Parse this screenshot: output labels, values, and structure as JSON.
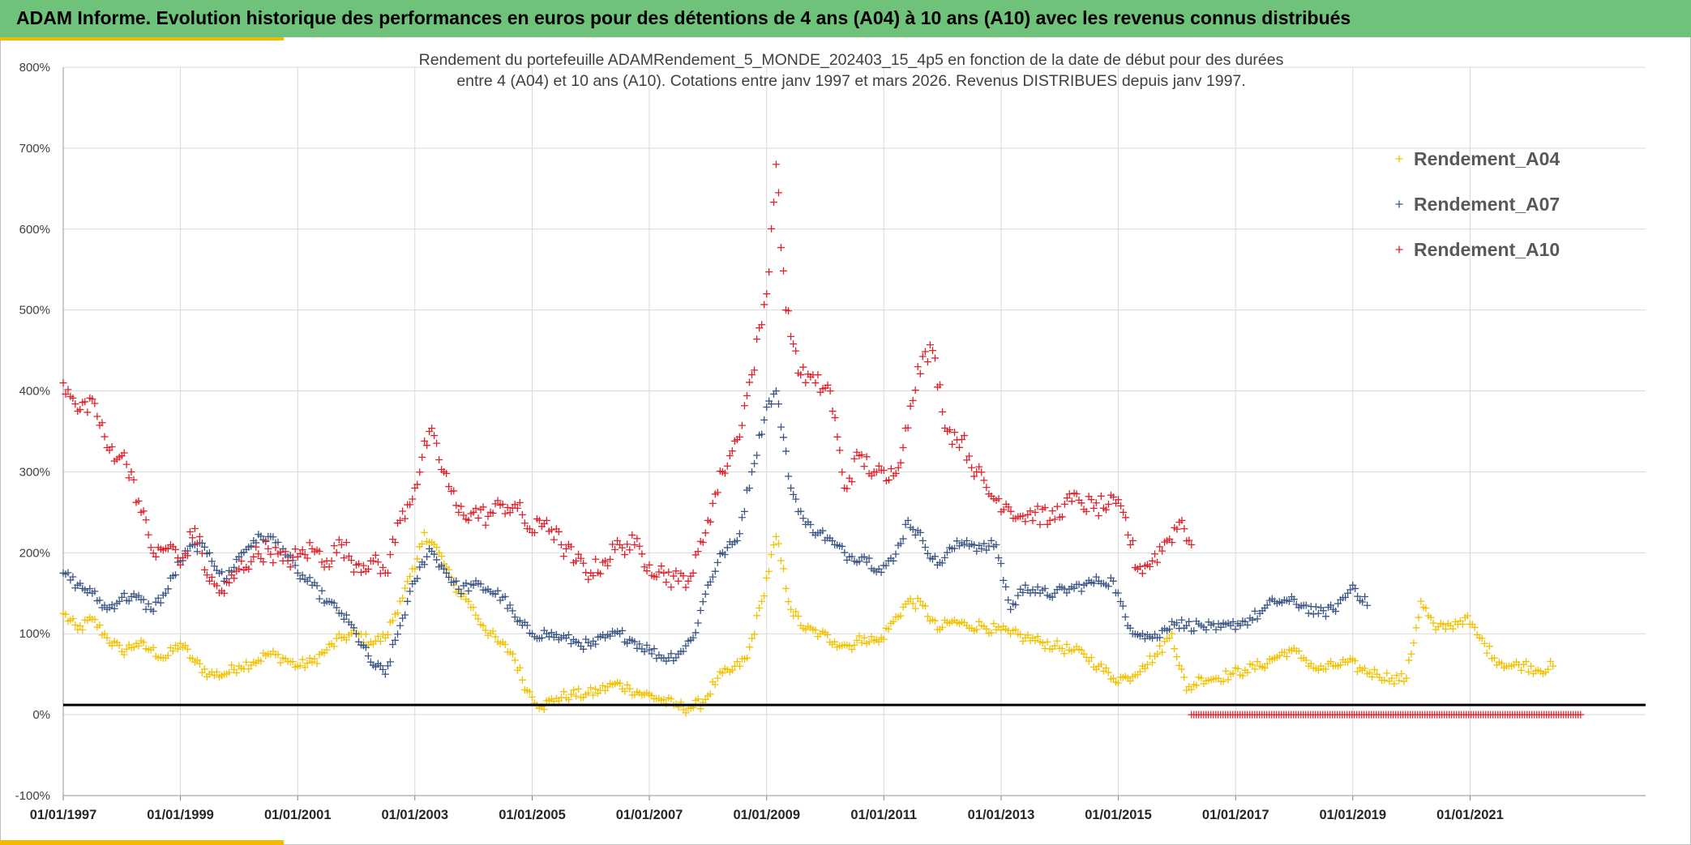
{
  "header": {
    "title": "ADAM Informe. Evolution historique des performances en euros pour des détentions de 4 ans (A04) à 10 ans (A10) avec les revenus connus distribués"
  },
  "chart_data": {
    "type": "scatter",
    "title_line1": "Rendement du portefeuille ADAMRendement_5_MONDE_202403_15_4p5  en fonction de la date de début pour des durées",
    "title_line2": "entre 4 (A04) et 10 ans (A10). Cotations entre janv 1997 et mars 2026. Revenus DISTRIBUES depuis janv 1997.",
    "xlabel": "",
    "ylabel": "",
    "ylim": [
      -100,
      800
    ],
    "x_range": [
      "1997-01-01",
      "2023-01-01"
    ],
    "y_ticks": [
      "-100%",
      "0%",
      "100%",
      "200%",
      "300%",
      "400%",
      "500%",
      "600%",
      "700%",
      "800%"
    ],
    "x_ticks": [
      "01/01/1997",
      "01/01/1999",
      "01/01/2001",
      "01/01/2003",
      "01/01/2005",
      "01/01/2007",
      "01/01/2009",
      "01/01/2011",
      "01/01/2013",
      "01/01/2015",
      "01/01/2017",
      "01/01/2019",
      "01/01/2021"
    ],
    "grid": true,
    "legend_position": "top-right",
    "reference_line_y": 12,
    "series": [
      {
        "name": "Rendement_A04",
        "color": "#f2c100",
        "points": [
          [
            "1997-01-01",
            125
          ],
          [
            "1997-04-01",
            105
          ],
          [
            "1997-07-01",
            118
          ],
          [
            "1997-10-01",
            95
          ],
          [
            "1998-01-01",
            78
          ],
          [
            "1998-04-01",
            88
          ],
          [
            "1998-07-01",
            80
          ],
          [
            "1998-10-01",
            70
          ],
          [
            "1999-01-01",
            88
          ],
          [
            "1999-04-01",
            65
          ],
          [
            "1999-07-01",
            50
          ],
          [
            "1999-10-01",
            50
          ],
          [
            "2000-01-01",
            60
          ],
          [
            "2000-04-01",
            65
          ],
          [
            "2000-07-01",
            75
          ],
          [
            "2000-10-01",
            70
          ],
          [
            "2001-01-01",
            60
          ],
          [
            "2001-04-01",
            65
          ],
          [
            "2001-07-01",
            80
          ],
          [
            "2001-10-01",
            95
          ],
          [
            "2002-01-01",
            100
          ],
          [
            "2002-04-01",
            90
          ],
          [
            "2002-07-01",
            95
          ],
          [
            "2002-10-01",
            140
          ],
          [
            "2003-01-01",
            180
          ],
          [
            "2003-03-01",
            225
          ],
          [
            "2003-06-01",
            200
          ],
          [
            "2003-09-01",
            160
          ],
          [
            "2003-12-01",
            140
          ],
          [
            "2004-03-01",
            110
          ],
          [
            "2004-06-01",
            90
          ],
          [
            "2004-09-01",
            75
          ],
          [
            "2004-12-01",
            30
          ],
          [
            "2005-03-01",
            10
          ],
          [
            "2005-06-01",
            20
          ],
          [
            "2005-09-01",
            25
          ],
          [
            "2005-12-01",
            25
          ],
          [
            "2006-03-01",
            30
          ],
          [
            "2006-06-01",
            38
          ],
          [
            "2006-09-01",
            32
          ],
          [
            "2006-12-01",
            25
          ],
          [
            "2007-03-01",
            20
          ],
          [
            "2007-06-01",
            12
          ],
          [
            "2007-09-01",
            8
          ],
          [
            "2007-12-01",
            15
          ],
          [
            "2008-03-01",
            45
          ],
          [
            "2008-06-01",
            55
          ],
          [
            "2008-09-01",
            70
          ],
          [
            "2008-12-01",
            140
          ],
          [
            "2009-03-01",
            220
          ],
          [
            "2009-06-01",
            130
          ],
          [
            "2009-09-01",
            105
          ],
          [
            "2009-12-01",
            100
          ],
          [
            "2010-03-01",
            90
          ],
          [
            "2010-06-01",
            85
          ],
          [
            "2010-09-01",
            95
          ],
          [
            "2010-12-01",
            90
          ],
          [
            "2011-03-01",
            115
          ],
          [
            "2011-06-01",
            140
          ],
          [
            "2011-09-01",
            135
          ],
          [
            "2011-12-01",
            105
          ],
          [
            "2012-03-01",
            115
          ],
          [
            "2012-06-01",
            110
          ],
          [
            "2012-09-01",
            110
          ],
          [
            "2012-12-01",
            105
          ],
          [
            "2013-03-01",
            100
          ],
          [
            "2013-06-01",
            95
          ],
          [
            "2013-09-01",
            90
          ],
          [
            "2013-12-01",
            85
          ],
          [
            "2014-03-01",
            80
          ],
          [
            "2014-06-01",
            75
          ],
          [
            "2014-09-01",
            60
          ],
          [
            "2014-12-01",
            45
          ],
          [
            "2015-03-01",
            45
          ],
          [
            "2015-06-01",
            60
          ],
          [
            "2015-09-01",
            75
          ],
          [
            "2015-12-01",
            100
          ],
          [
            "2016-03-01",
            30
          ],
          [
            "2016-06-01",
            45
          ],
          [
            "2016-09-01",
            45
          ],
          [
            "2016-12-01",
            50
          ],
          [
            "2017-03-01",
            55
          ],
          [
            "2017-06-01",
            60
          ],
          [
            "2017-09-01",
            70
          ],
          [
            "2017-12-01",
            80
          ],
          [
            "2018-03-01",
            70
          ],
          [
            "2018-06-01",
            55
          ],
          [
            "2018-09-01",
            60
          ],
          [
            "2018-12-01",
            65
          ],
          [
            "2019-03-01",
            55
          ],
          [
            "2019-06-01",
            50
          ],
          [
            "2019-09-01",
            45
          ],
          [
            "2019-12-01",
            45
          ],
          [
            "2020-03-01",
            140
          ],
          [
            "2020-06-01",
            105
          ],
          [
            "2020-09-01",
            110
          ],
          [
            "2020-12-01",
            120
          ],
          [
            "2021-03-01",
            95
          ],
          [
            "2021-06-01",
            70
          ],
          [
            "2021-09-01",
            60
          ],
          [
            "2021-12-01",
            62
          ],
          [
            "2022-03-01",
            55
          ],
          [
            "2022-06-01",
            60
          ]
        ]
      },
      {
        "name": "Rendement_A07",
        "color": "#3b5584",
        "points": [
          [
            "1997-01-01",
            175
          ],
          [
            "1997-04-01",
            160
          ],
          [
            "1997-07-01",
            150
          ],
          [
            "1997-10-01",
            130
          ],
          [
            "1998-01-01",
            145
          ],
          [
            "1998-04-01",
            145
          ],
          [
            "1998-07-01",
            130
          ],
          [
            "1998-10-01",
            150
          ],
          [
            "1999-01-01",
            190
          ],
          [
            "1999-04-01",
            210
          ],
          [
            "1999-07-01",
            200
          ],
          [
            "1999-10-01",
            165
          ],
          [
            "2000-01-01",
            195
          ],
          [
            "2000-04-01",
            215
          ],
          [
            "2000-07-01",
            220
          ],
          [
            "2000-10-01",
            205
          ],
          [
            "2001-01-01",
            175
          ],
          [
            "2001-04-01",
            160
          ],
          [
            "2001-07-01",
            140
          ],
          [
            "2001-10-01",
            125
          ],
          [
            "2002-01-01",
            100
          ],
          [
            "2002-04-01",
            65
          ],
          [
            "2002-07-01",
            50
          ],
          [
            "2002-10-01",
            110
          ],
          [
            "2003-01-01",
            165
          ],
          [
            "2003-04-01",
            205
          ],
          [
            "2003-07-01",
            180
          ],
          [
            "2003-10-01",
            155
          ],
          [
            "2004-01-01",
            160
          ],
          [
            "2004-04-01",
            155
          ],
          [
            "2004-07-01",
            145
          ],
          [
            "2004-10-01",
            115
          ],
          [
            "2005-01-01",
            100
          ],
          [
            "2005-04-01",
            100
          ],
          [
            "2005-07-01",
            95
          ],
          [
            "2005-10-01",
            90
          ],
          [
            "2006-01-01",
            85
          ],
          [
            "2006-04-01",
            95
          ],
          [
            "2006-07-01",
            100
          ],
          [
            "2006-10-01",
            90
          ],
          [
            "2007-01-01",
            80
          ],
          [
            "2007-04-01",
            70
          ],
          [
            "2007-07-01",
            75
          ],
          [
            "2007-10-01",
            95
          ],
          [
            "2008-01-01",
            160
          ],
          [
            "2008-04-01",
            200
          ],
          [
            "2008-07-01",
            215
          ],
          [
            "2008-10-01",
            300
          ],
          [
            "2009-01-01",
            380
          ],
          [
            "2009-03-01",
            400
          ],
          [
            "2009-06-01",
            280
          ],
          [
            "2009-09-01",
            235
          ],
          [
            "2009-12-01",
            225
          ],
          [
            "2010-03-01",
            210
          ],
          [
            "2010-06-01",
            195
          ],
          [
            "2010-09-01",
            195
          ],
          [
            "2010-12-01",
            180
          ],
          [
            "2011-03-01",
            190
          ],
          [
            "2011-06-01",
            240
          ],
          [
            "2011-09-01",
            215
          ],
          [
            "2011-12-01",
            185
          ],
          [
            "2012-03-01",
            205
          ],
          [
            "2012-06-01",
            215
          ],
          [
            "2012-09-01",
            205
          ],
          [
            "2012-12-01",
            210
          ],
          [
            "2013-03-01",
            130
          ],
          [
            "2013-06-01",
            160
          ],
          [
            "2013-09-01",
            150
          ],
          [
            "2013-12-01",
            150
          ],
          [
            "2014-03-01",
            155
          ],
          [
            "2014-06-01",
            160
          ],
          [
            "2014-09-01",
            165
          ],
          [
            "2014-12-01",
            165
          ],
          [
            "2015-03-01",
            110
          ],
          [
            "2015-06-01",
            100
          ],
          [
            "2015-09-01",
            95
          ],
          [
            "2015-12-01",
            115
          ],
          [
            "2016-03-01",
            110
          ],
          [
            "2016-06-01",
            110
          ],
          [
            "2016-09-01",
            105
          ],
          [
            "2016-12-01",
            110
          ],
          [
            "2017-03-01",
            115
          ],
          [
            "2017-06-01",
            125
          ],
          [
            "2017-09-01",
            140
          ],
          [
            "2017-12-01",
            140
          ],
          [
            "2018-03-01",
            135
          ],
          [
            "2018-06-01",
            125
          ],
          [
            "2018-09-01",
            130
          ],
          [
            "2018-12-01",
            150
          ],
          [
            "2019-01-01",
            160
          ],
          [
            "2019-04-01",
            135
          ]
        ]
      },
      {
        "name": "Rendement_A10",
        "color": "#e0202a",
        "points": [
          [
            "1997-01-01",
            410
          ],
          [
            "1997-04-01",
            375
          ],
          [
            "1997-07-01",
            390
          ],
          [
            "1997-10-01",
            330
          ],
          [
            "1998-01-01",
            320
          ],
          [
            "1998-03-01",
            300
          ],
          [
            "1998-05-01",
            250
          ],
          [
            "1998-08-01",
            195
          ],
          [
            "1998-11-01",
            210
          ],
          [
            "1999-01-01",
            185
          ],
          [
            "1999-04-01",
            230
          ],
          [
            "1999-07-01",
            165
          ],
          [
            "1999-10-01",
            150
          ],
          [
            "2000-01-01",
            180
          ],
          [
            "2000-04-01",
            195
          ],
          [
            "2000-07-01",
            205
          ],
          [
            "2000-10-01",
            190
          ],
          [
            "2001-01-01",
            195
          ],
          [
            "2001-04-01",
            205
          ],
          [
            "2001-07-01",
            190
          ],
          [
            "2001-10-01",
            210
          ],
          [
            "2002-01-01",
            185
          ],
          [
            "2002-04-01",
            190
          ],
          [
            "2002-07-01",
            175
          ],
          [
            "2002-10-01",
            240
          ],
          [
            "2003-01-01",
            280
          ],
          [
            "2003-04-01",
            350
          ],
          [
            "2003-07-01",
            300
          ],
          [
            "2003-10-01",
            250
          ],
          [
            "2004-01-01",
            250
          ],
          [
            "2004-04-01",
            245
          ],
          [
            "2004-07-01",
            260
          ],
          [
            "2004-10-01",
            255
          ],
          [
            "2005-01-01",
            225
          ],
          [
            "2005-04-01",
            240
          ],
          [
            "2005-07-01",
            210
          ],
          [
            "2005-10-01",
            190
          ],
          [
            "2006-01-01",
            175
          ],
          [
            "2006-04-01",
            190
          ],
          [
            "2006-07-01",
            210
          ],
          [
            "2006-10-01",
            210
          ],
          [
            "2007-01-01",
            185
          ],
          [
            "2007-04-01",
            175
          ],
          [
            "2007-07-01",
            165
          ],
          [
            "2007-10-01",
            175
          ],
          [
            "2008-01-01",
            240
          ],
          [
            "2008-04-01",
            300
          ],
          [
            "2008-07-01",
            340
          ],
          [
            "2008-10-01",
            420
          ],
          [
            "2009-01-01",
            520
          ],
          [
            "2009-03-01",
            680
          ],
          [
            "2009-05-01",
            500
          ],
          [
            "2009-08-01",
            420
          ],
          [
            "2009-11-01",
            410
          ],
          [
            "2010-02-01",
            400
          ],
          [
            "2010-05-01",
            280
          ],
          [
            "2010-08-01",
            320
          ],
          [
            "2010-11-01",
            300
          ],
          [
            "2011-02-01",
            290
          ],
          [
            "2011-05-01",
            330
          ],
          [
            "2011-08-01",
            430
          ],
          [
            "2011-11-01",
            450
          ],
          [
            "2012-02-01",
            350
          ],
          [
            "2012-05-01",
            340
          ],
          [
            "2012-08-01",
            300
          ],
          [
            "2012-11-01",
            270
          ],
          [
            "2013-02-01",
            260
          ],
          [
            "2013-05-01",
            245
          ],
          [
            "2013-08-01",
            250
          ],
          [
            "2013-11-01",
            240
          ],
          [
            "2014-02-01",
            260
          ],
          [
            "2014-05-01",
            265
          ],
          [
            "2014-08-01",
            255
          ],
          [
            "2014-11-01",
            260
          ],
          [
            "2015-02-01",
            250
          ],
          [
            "2015-05-01",
            180
          ],
          [
            "2015-08-01",
            190
          ],
          [
            "2015-11-01",
            215
          ],
          [
            "2016-02-01",
            240
          ],
          [
            "2016-04-01",
            210
          ]
        ],
        "zero_band": [
          "2016-04-01",
          "2022-12-01"
        ]
      }
    ]
  }
}
